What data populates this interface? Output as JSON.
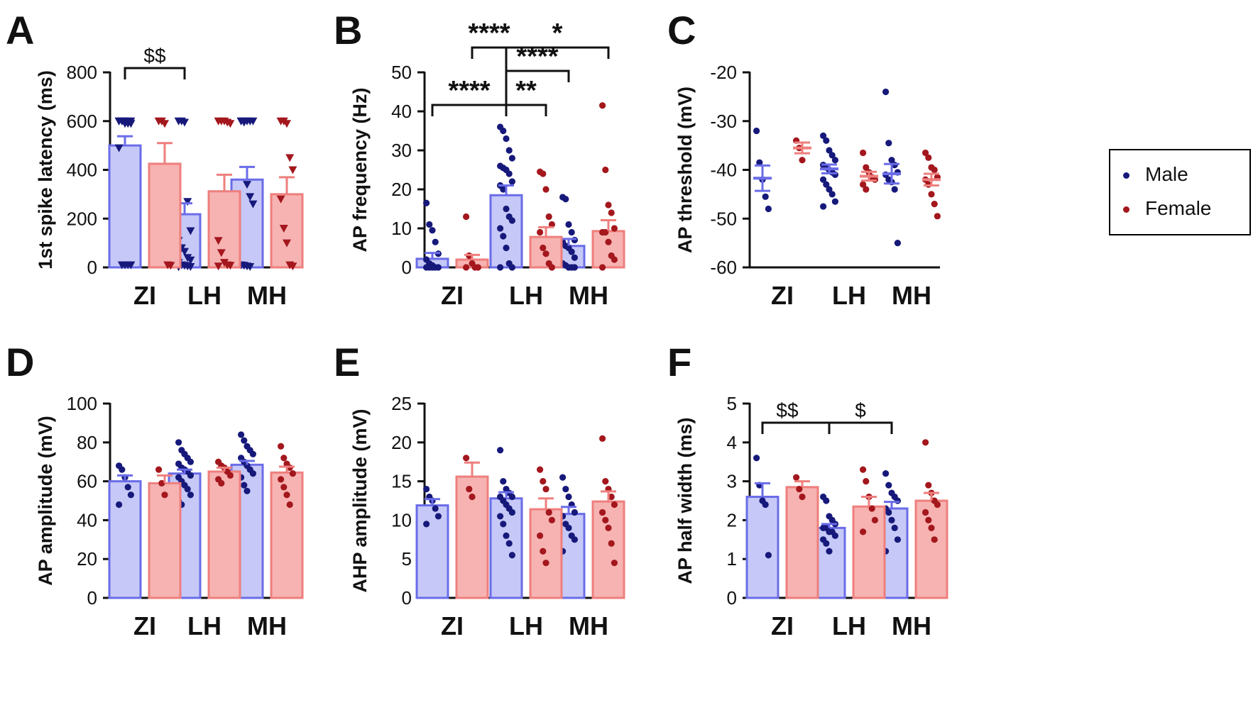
{
  "figure": {
    "legend": {
      "items": [
        {
          "label": "Male",
          "color": "#16197a"
        },
        {
          "label": "Female",
          "color": "#a3171d"
        }
      ]
    }
  },
  "colors": {
    "male_fill": "#c6c8f7",
    "male_edge": "#6a6ce8",
    "male_point": "#16197a",
    "female_fill": "#f6b3b2",
    "female_edge": "#ee7f7d",
    "female_point": "#a3171d"
  },
  "chart_data": [
    {
      "id": "A",
      "panel_label": "A",
      "type": "bar",
      "ylabel": "1st spike latency (ms)",
      "ylim": [
        0,
        800
      ],
      "yticks": [
        "0",
        "200",
        "400",
        "600",
        "800"
      ],
      "categories": [
        "ZI",
        "LH",
        "MH"
      ],
      "bars": true,
      "marker": "triangle",
      "series": [
        {
          "name": "Male",
          "values": [
            500,
            218,
            360
          ],
          "sem": [
            38,
            45,
            52
          ],
          "points": [
            [
              600,
              600,
              600,
              600,
              600,
              600,
              600,
              590,
              590,
              590,
              490,
              10,
              10,
              10,
              10
            ],
            [
              600,
              600,
              595,
              270,
              150,
              110,
              80,
              65,
              40,
              30,
              20,
              10,
              8,
              5,
              3,
              2
            ],
            [
              600,
              600,
              600,
              600,
              600,
              600,
              595,
              340,
              290,
              260,
              10,
              8,
              5,
              3
            ]
          ]
        },
        {
          "name": "Female",
          "values": [
            425,
            312,
            300
          ],
          "sem": [
            85,
            68,
            70
          ],
          "points": [
            [
              600,
              600,
              590,
              10,
              8
            ],
            [
              600,
              600,
              600,
              595,
              590,
              110,
              60,
              20,
              10,
              8,
              5
            ],
            [
              600,
              600,
              590,
              450,
              400,
              280,
              160,
              100,
              10,
              5
            ]
          ]
        }
      ],
      "annotations": [
        {
          "text": "$$",
          "from": "ZI-Male",
          "to": "LH-Male"
        }
      ]
    },
    {
      "id": "B",
      "panel_label": "B",
      "type": "bar",
      "ylabel": "AP frequency (Hz)",
      "ylim": [
        0,
        50
      ],
      "yticks": [
        "0",
        "10",
        "20",
        "30",
        "40",
        "50"
      ],
      "categories": [
        "ZI",
        "LH",
        "MH"
      ],
      "bars": true,
      "marker": "circle",
      "series": [
        {
          "name": "Male",
          "values": [
            2.2,
            18.5,
            5.5
          ],
          "sem": [
            1.5,
            2.5,
            1.8
          ],
          "points": [
            [
              16.5,
              11,
              9.5,
              6.5,
              3.5,
              2,
              1,
              0.5,
              0,
              0,
              0,
              0,
              0
            ],
            [
              36,
              35,
              33,
              30,
              28,
              26,
              25.5,
              25,
              24,
              22,
              21,
              20,
              15,
              13,
              12,
              10,
              8,
              5,
              1,
              0,
              0
            ],
            [
              18,
              17.5,
              11,
              9,
              7,
              6.5,
              5.5,
              5,
              4,
              2.5,
              1,
              0.5,
              0,
              0,
              0
            ]
          ]
        },
        {
          "name": "Female",
          "values": [
            2,
            7.8,
            9.3
          ],
          "sem": [
            1.2,
            2.5,
            2.8
          ],
          "points": [
            [
              13,
              3,
              1,
              0,
              0,
              0
            ],
            [
              24.5,
              24,
              20,
              13,
              11,
              9,
              5,
              3.5,
              1,
              0
            ],
            [
              41.5,
              25,
              16,
              14,
              10,
              9,
              9,
              6.5,
              3,
              2,
              0
            ]
          ]
        }
      ],
      "annotations": [
        {
          "text": "****",
          "from": "ZI-Male",
          "to": "LH-Male"
        },
        {
          "text": "**",
          "from": "LH-Male",
          "to": "LH-Female"
        },
        {
          "text": "****",
          "from": "LH-Male",
          "to": "MH-Male"
        },
        {
          "text": "****",
          "from": "ZI-Female",
          "to": "LH-Male"
        },
        {
          "text": "*",
          "from": "LH-Male",
          "to": "MH-Female"
        }
      ]
    },
    {
      "id": "C",
      "panel_label": "C",
      "type": "scatter",
      "ylabel": "AP threshold (mV)",
      "ylim": [
        -60,
        -20
      ],
      "yticks": [
        "-60",
        "-50",
        "-40",
        "-30",
        "-20"
      ],
      "categories": [
        "ZI",
        "LH",
        "MH"
      ],
      "bars": false,
      "marker": "circle",
      "series": [
        {
          "name": "Male",
          "values": [
            -41.7,
            -39.8,
            -40.8
          ],
          "sem": [
            2.6,
            0.9,
            2.0
          ],
          "points": [
            [
              -32,
              -38.5,
              -42,
              -45.5,
              -48
            ],
            [
              -33,
              -34,
              -36,
              -37,
              -38,
              -39,
              -39.5,
              -40,
              -40.5,
              -41,
              -42,
              -43,
              -44,
              -45,
              -46.5,
              -47.5
            ],
            [
              -24,
              -34.5,
              -38,
              -39,
              -40.5,
              -41,
              -42,
              -42.5,
              -44,
              -55
            ]
          ]
        },
        {
          "name": "Female",
          "values": [
            -35.5,
            -41.3,
            -42
          ],
          "sem": [
            1.1,
            0.9,
            1.2
          ],
          "points": [
            [
              -34,
              -35.5,
              -38
            ],
            [
              -36.5,
              -39.5,
              -40.5,
              -41.5,
              -42,
              -43,
              -44
            ],
            [
              -36.5,
              -37.5,
              -39.5,
              -40,
              -41.5,
              -42,
              -43,
              -45,
              -47,
              -49.5
            ]
          ]
        }
      ]
    },
    {
      "id": "D",
      "panel_label": "D",
      "type": "bar",
      "ylabel": "AP amplitude (mV)",
      "ylim": [
        0,
        100
      ],
      "yticks": [
        "0",
        "20",
        "40",
        "60",
        "80",
        "100"
      ],
      "categories": [
        "ZI",
        "LH",
        "MH"
      ],
      "bars": true,
      "marker": "circle",
      "series": [
        {
          "name": "Male",
          "values": [
            60,
            64,
            68.5
          ],
          "sem": [
            3,
            2,
            2
          ],
          "points": [
            [
              68,
              66,
              62,
              57,
              53,
              48
            ],
            [
              80,
              76,
              74,
              72,
              70,
              69,
              67,
              66,
              65,
              63,
              62,
              60,
              58,
              56,
              53,
              50,
              48
            ],
            [
              84,
              81,
              78,
              76,
              74,
              72,
              70,
              68,
              66,
              64,
              62,
              58,
              55
            ]
          ]
        },
        {
          "name": "Female",
          "values": [
            59,
            65,
            64.5
          ],
          "sem": [
            4,
            2,
            3
          ],
          "points": [
            [
              66,
              59,
              53
            ],
            [
              70,
              68,
              67,
              65,
              63,
              61,
              59
            ],
            [
              78,
              72,
              69,
              67,
              64,
              61,
              57,
              53,
              48
            ]
          ]
        }
      ]
    },
    {
      "id": "E",
      "panel_label": "E",
      "type": "bar",
      "ylabel": "AHP amplitude (mV)",
      "ylim": [
        0,
        25
      ],
      "yticks": [
        "0",
        "5",
        "10",
        "15",
        "20",
        "25"
      ],
      "categories": [
        "ZI",
        "LH",
        "MH"
      ],
      "bars": true,
      "marker": "circle",
      "series": [
        {
          "name": "Male",
          "values": [
            11.9,
            12.8,
            10.8
          ],
          "sem": [
            0.8,
            0.8,
            0.9
          ],
          "points": [
            [
              14,
              13,
              12.5,
              11.5,
              10.5,
              9.5
            ],
            [
              19,
              15,
              14,
              13.5,
              13,
              13,
              12.5,
              12,
              11.5,
              11,
              10.5,
              9.5,
              8,
              7,
              5.5
            ],
            [
              15.5,
              14,
              13,
              12,
              11,
              10.5,
              9.5,
              9,
              8,
              7.5,
              6
            ]
          ]
        },
        {
          "name": "Female",
          "values": [
            15.6,
            11.4,
            12.4
          ],
          "sem": [
            1.8,
            1.4,
            1.3
          ],
          "points": [
            [
              18,
              14,
              13
            ],
            [
              16.5,
              15,
              14,
              11,
              10,
              8,
              6,
              4.5
            ],
            [
              20.5,
              15,
              14,
              13,
              12,
              11,
              10,
              9,
              7,
              4.5
            ]
          ]
        }
      ]
    },
    {
      "id": "F",
      "panel_label": "F",
      "type": "bar",
      "ylabel": "AP half width (ms)",
      "ylim": [
        0,
        5
      ],
      "yticks": [
        "0",
        "1",
        "2",
        "3",
        "4",
        "5"
      ],
      "categories": [
        "ZI",
        "LH",
        "MH"
      ],
      "bars": true,
      "marker": "circle",
      "series": [
        {
          "name": "Male",
          "values": [
            2.6,
            1.8,
            2.3
          ],
          "sem": [
            0.35,
            0.1,
            0.17
          ],
          "points": [
            [
              3.6,
              2.9,
              2.5,
              2.4,
              1.1
            ],
            [
              2.6,
              2.5,
              2.1,
              2,
              1.9,
              1.8,
              1.8,
              1.7,
              1.7,
              1.6,
              1.5,
              1.4,
              1.2
            ],
            [
              3.2,
              2.9,
              2.7,
              2.6,
              2.5,
              2.3,
              2.2,
              2,
              1.8,
              1.5,
              1.2
            ]
          ]
        },
        {
          "name": "Female",
          "values": [
            2.85,
            2.35,
            2.5
          ],
          "sem": [
            0.15,
            0.25,
            0.2
          ],
          "points": [
            [
              3.1,
              2.8,
              2.6
            ],
            [
              3.3,
              3.0,
              2.6,
              2.3,
              2.0,
              1.7
            ],
            [
              4,
              2.9,
              2.7,
              2.5,
              2.4,
              2.2,
              2.0,
              1.8,
              1.5
            ]
          ]
        }
      ],
      "annotations": [
        {
          "text": "$$",
          "from": "ZI-Male",
          "to": "LH-Male"
        },
        {
          "text": "$",
          "from": "LH-Male",
          "to": "MH-Male"
        }
      ]
    }
  ]
}
